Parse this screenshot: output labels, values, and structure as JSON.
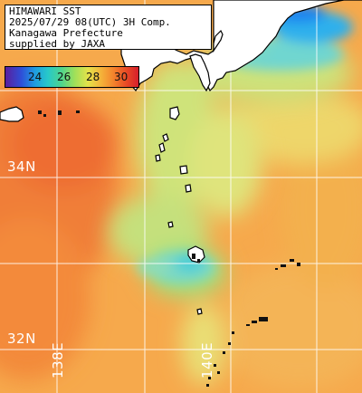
{
  "title": {
    "line1": "HIMAWARI SST",
    "line2": "2025/07/29 08(UTC) 3H Comp.",
    "line3": "Kanagawa Prefecture",
    "line4": "supplied by JAXA"
  },
  "legend": {
    "ticks": [
      "24",
      "26",
      "28",
      "30"
    ],
    "colors": [
      "#5a1f9e",
      "#2e4fd8",
      "#1f9be0",
      "#27c9c9",
      "#4ed48e",
      "#9fe05a",
      "#e4e24a",
      "#f4b23a",
      "#f37f2b",
      "#e84a25",
      "#d61e2c"
    ]
  },
  "grid": {
    "lat_labels": [
      "34N",
      "32N"
    ],
    "lon_labels": [
      "138E",
      "140E"
    ]
  },
  "colors": {
    "warm_ocean": "#f5a54a",
    "hot_ocean": "#f07a36",
    "cool_ocean": "#c6e07a",
    "cold_ocean": "#66d6d0",
    "very_cold": "#1f8ff0",
    "land": "#ffffff",
    "coast": "#000000",
    "grid": "#ffffff"
  }
}
